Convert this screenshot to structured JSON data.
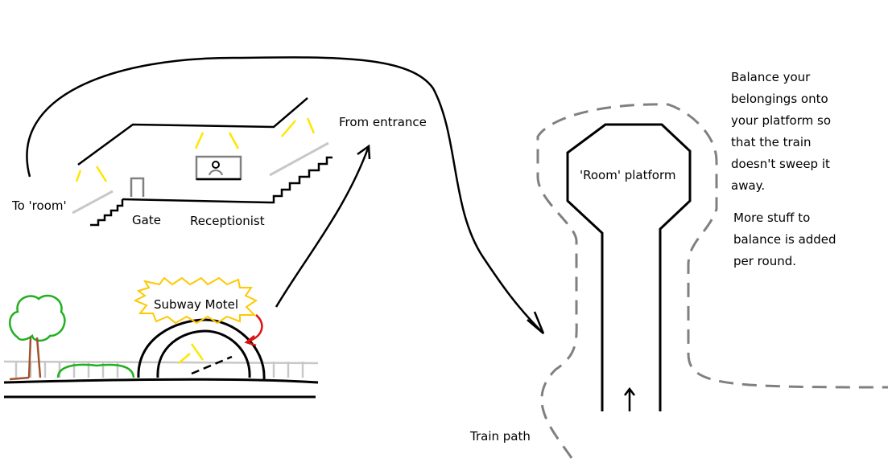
{
  "labels": {
    "to_room": "To 'room'",
    "gate": "Gate",
    "receptionist": "Receptionist",
    "from_entrance": "From entrance",
    "subway_motel": "Subway Motel",
    "room_platform": "'Room' platform",
    "train_path": "Train path"
  },
  "notes": {
    "balance": [
      "Balance your",
      "belongings onto",
      "your platform so",
      "that the train",
      "doesn't sweep it",
      "away."
    ],
    "more_stuff": [
      "More stuff to",
      "balance is added",
      "per round."
    ]
  },
  "colors": {
    "ink": "#000000",
    "light": "#ffe600",
    "stairs_grey": "#c8c8c8",
    "dashed_path": "#808080",
    "sign_outline": "#ffc800",
    "arrow_red": "#e01010",
    "tree_green": "#20b020",
    "trunk_brown": "#a0522d"
  },
  "icons": {
    "receptionist": "person-icon",
    "tree": "tree-icon"
  }
}
